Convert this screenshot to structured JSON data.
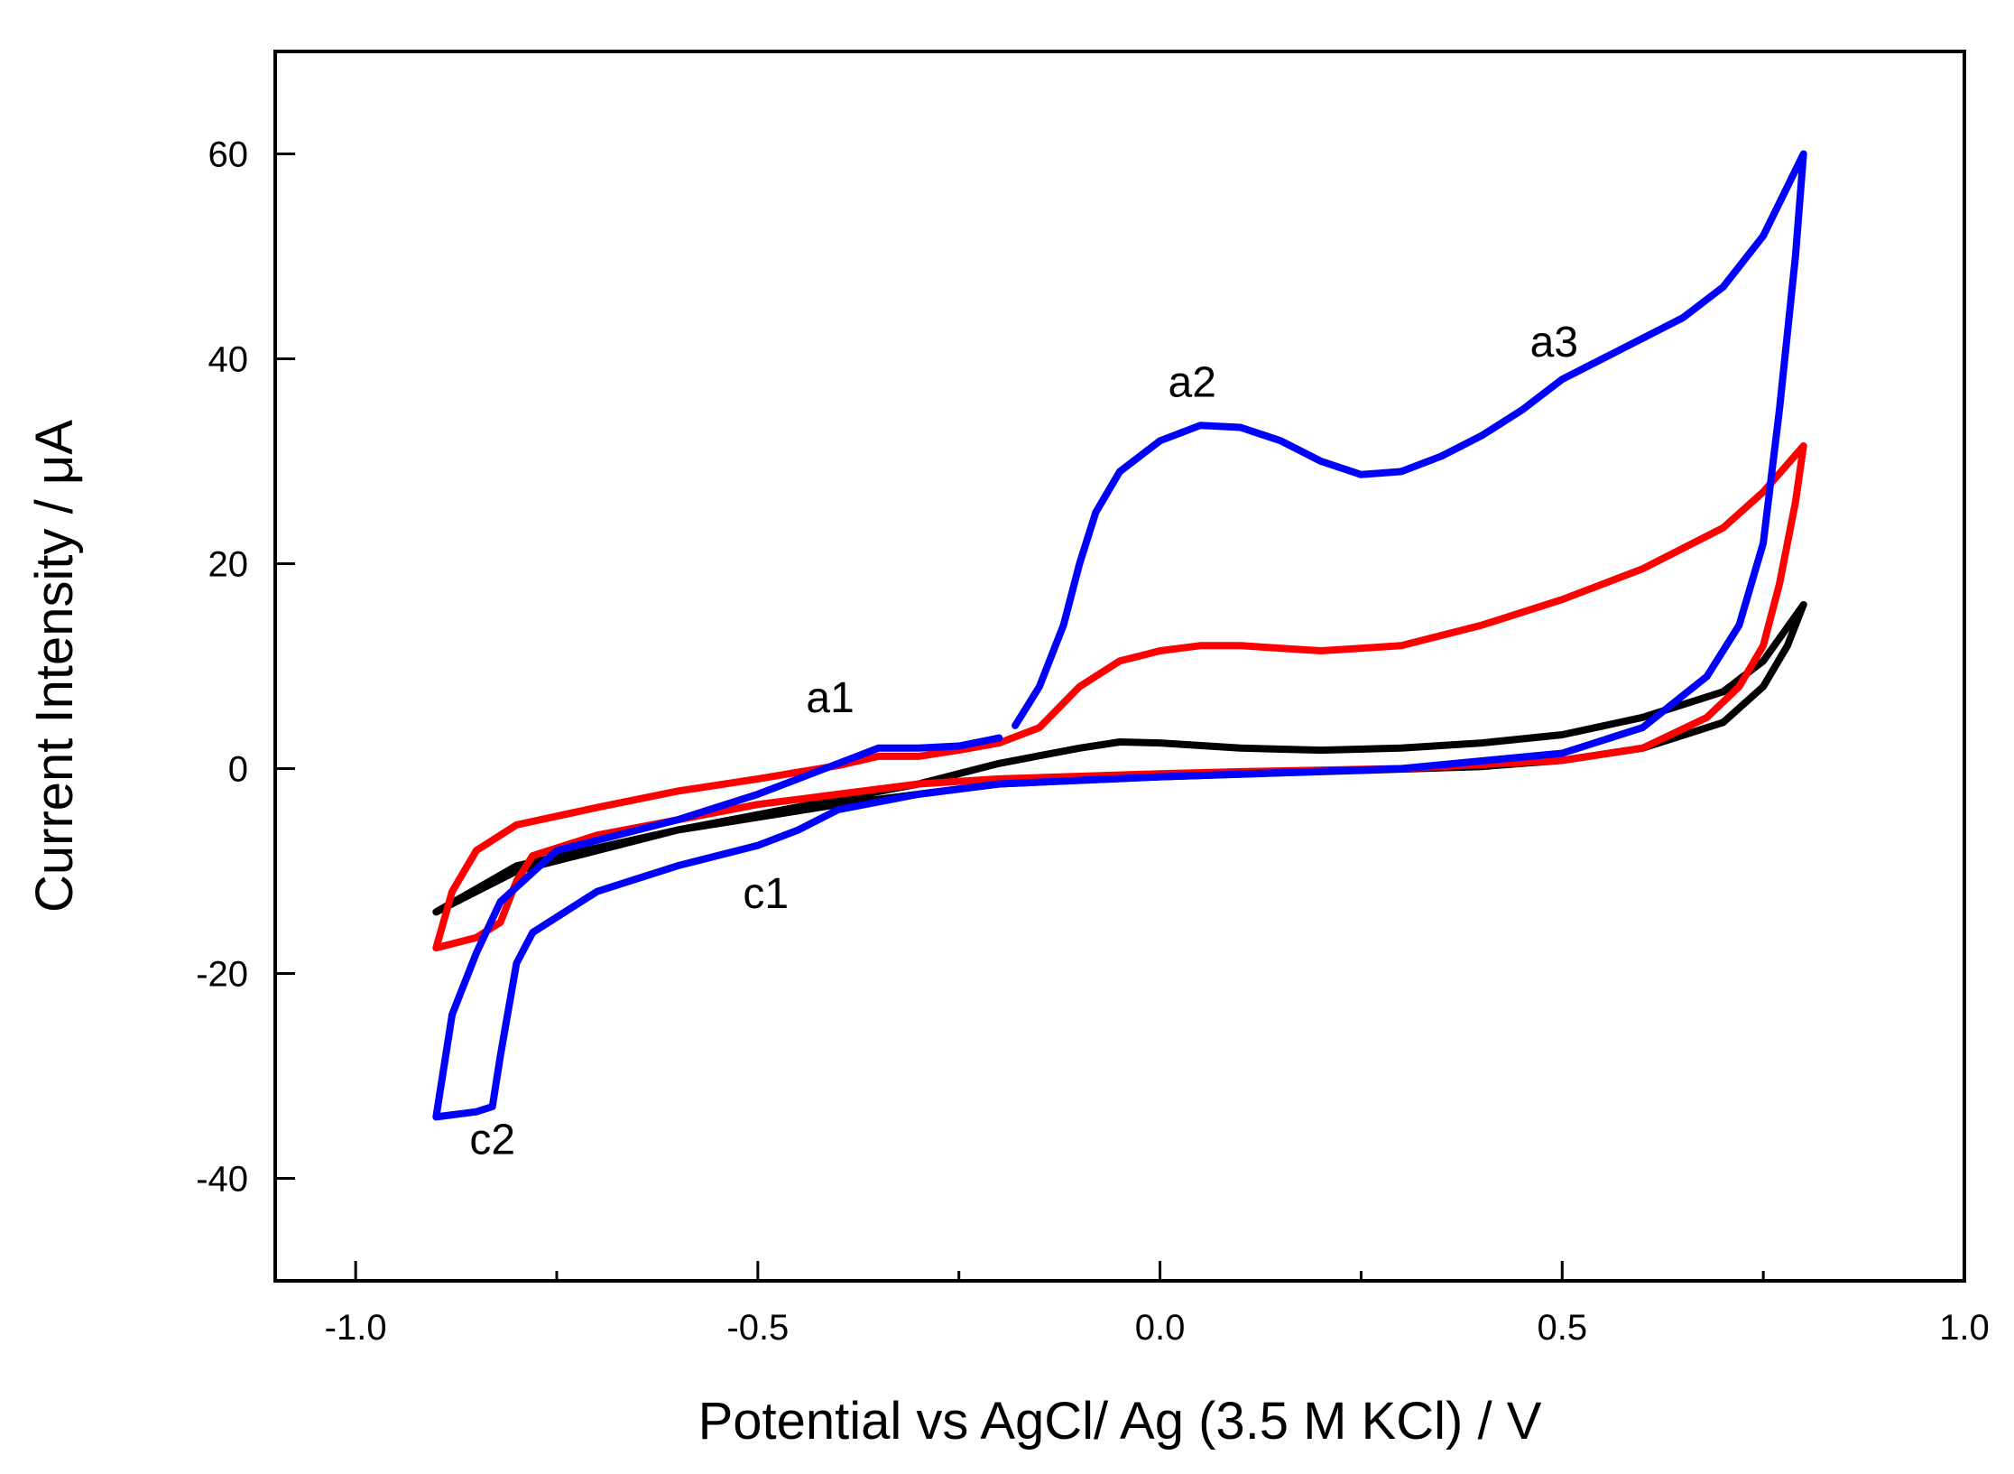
{
  "chart_data": {
    "type": "line",
    "title": "",
    "xlabel": "Potential vs AgCl/ Ag (3.5 M KCl) / V",
    "ylabel": "Current Intensity / μA",
    "xlim": [
      -1.1,
      1.0
    ],
    "ylim": [
      -50,
      70
    ],
    "xticks": [
      -1.0,
      -0.5,
      0.0,
      0.5,
      1.0
    ],
    "xtick_labels": [
      "-1.0",
      "-0.5",
      "0.0",
      "0.5",
      "1.0"
    ],
    "yticks": [
      -40,
      -20,
      0,
      20,
      40,
      60
    ],
    "ytick_labels": [
      "-40",
      "-20",
      "0",
      "20",
      "40",
      "60"
    ],
    "grid": false,
    "legend": "none",
    "series": [
      {
        "name": "black",
        "color": "#000000",
        "points": [
          [
            -0.9,
            -14
          ],
          [
            -0.8,
            -10
          ],
          [
            -0.6,
            -6
          ],
          [
            -0.4,
            -3
          ],
          [
            -0.3,
            -1.5
          ],
          [
            -0.2,
            0.5
          ],
          [
            -0.1,
            2
          ],
          [
            -0.05,
            2.6
          ],
          [
            0.0,
            2.5
          ],
          [
            0.1,
            2
          ],
          [
            0.2,
            1.8
          ],
          [
            0.3,
            2
          ],
          [
            0.4,
            2.5
          ],
          [
            0.5,
            3.3
          ],
          [
            0.6,
            5
          ],
          [
            0.7,
            7.5
          ],
          [
            0.75,
            10.5
          ],
          [
            0.8,
            16
          ],
          [
            0.78,
            12
          ],
          [
            0.75,
            8
          ],
          [
            0.7,
            4.5
          ],
          [
            0.6,
            2
          ],
          [
            0.5,
            0.8
          ],
          [
            0.4,
            0.2
          ],
          [
            0.2,
            -0.3
          ],
          [
            0.0,
            -0.8
          ],
          [
            -0.2,
            -1.5
          ],
          [
            -0.4,
            -3.5
          ],
          [
            -0.6,
            -6
          ],
          [
            -0.8,
            -9.5
          ],
          [
            -0.9,
            -14
          ]
        ]
      },
      {
        "name": "red",
        "color": "#ff0000",
        "points": [
          [
            -0.9,
            -17.5
          ],
          [
            -0.88,
            -12
          ],
          [
            -0.85,
            -8
          ],
          [
            -0.8,
            -5.5
          ],
          [
            -0.7,
            -3.8
          ],
          [
            -0.6,
            -2.2
          ],
          [
            -0.5,
            -1
          ],
          [
            -0.4,
            0.3
          ],
          [
            -0.35,
            1.2
          ],
          [
            -0.3,
            1.2
          ],
          [
            -0.25,
            1.8
          ],
          [
            -0.2,
            2.5
          ],
          [
            -0.15,
            4
          ],
          [
            -0.1,
            8
          ],
          [
            -0.05,
            10.5
          ],
          [
            0.0,
            11.5
          ],
          [
            0.05,
            12
          ],
          [
            0.1,
            12
          ],
          [
            0.2,
            11.5
          ],
          [
            0.3,
            12
          ],
          [
            0.4,
            14
          ],
          [
            0.5,
            16.5
          ],
          [
            0.6,
            19.5
          ],
          [
            0.7,
            23.5
          ],
          [
            0.75,
            27
          ],
          [
            0.8,
            31.5
          ],
          [
            0.79,
            26
          ],
          [
            0.77,
            18
          ],
          [
            0.75,
            12
          ],
          [
            0.72,
            8
          ],
          [
            0.68,
            5
          ],
          [
            0.6,
            2
          ],
          [
            0.5,
            0.8
          ],
          [
            0.3,
            0
          ],
          [
            0.1,
            -0.3
          ],
          [
            0.0,
            -0.5
          ],
          [
            -0.2,
            -1
          ],
          [
            -0.3,
            -1.5
          ],
          [
            -0.4,
            -2.5
          ],
          [
            -0.5,
            -3.5
          ],
          [
            -0.6,
            -5
          ],
          [
            -0.7,
            -6.5
          ],
          [
            -0.78,
            -8.5
          ],
          [
            -0.8,
            -11
          ],
          [
            -0.82,
            -15
          ],
          [
            -0.85,
            -16.5
          ],
          [
            -0.9,
            -17.5
          ]
        ]
      },
      {
        "name": "blue",
        "color": "#0000ff",
        "points": [
          [
            -0.18,
            4.2
          ],
          [
            -0.15,
            8
          ],
          [
            -0.12,
            14
          ],
          [
            -0.1,
            20
          ],
          [
            -0.08,
            25
          ],
          [
            -0.05,
            29
          ],
          [
            0.0,
            32
          ],
          [
            0.05,
            33.5
          ],
          [
            0.1,
            33.3
          ],
          [
            0.15,
            32
          ],
          [
            0.2,
            30
          ],
          [
            0.25,
            28.7
          ],
          [
            0.3,
            29
          ],
          [
            0.35,
            30.5
          ],
          [
            0.4,
            32.5
          ],
          [
            0.45,
            35
          ],
          [
            0.5,
            38
          ],
          [
            0.55,
            40
          ],
          [
            0.6,
            42
          ],
          [
            0.65,
            44
          ],
          [
            0.7,
            47
          ],
          [
            0.75,
            52
          ],
          [
            0.8,
            60
          ],
          [
            0.79,
            50
          ],
          [
            0.77,
            35
          ],
          [
            0.75,
            22
          ],
          [
            0.72,
            14
          ],
          [
            0.68,
            9
          ],
          [
            0.6,
            4
          ],
          [
            0.5,
            1.5
          ],
          [
            0.3,
            0
          ],
          [
            0.0,
            -0.8
          ],
          [
            -0.2,
            -1.5
          ],
          [
            -0.3,
            -2.5
          ],
          [
            -0.4,
            -4
          ],
          [
            -0.45,
            -6
          ],
          [
            -0.5,
            -7.5
          ],
          [
            -0.6,
            -9.5
          ],
          [
            -0.7,
            -12
          ],
          [
            -0.78,
            -16
          ],
          [
            -0.8,
            -19
          ],
          [
            -0.82,
            -28
          ],
          [
            -0.83,
            -33
          ],
          [
            -0.85,
            -33.5
          ],
          [
            -0.88,
            -33.8
          ],
          [
            -0.9,
            -34
          ],
          [
            -0.88,
            -24
          ],
          [
            -0.85,
            -18
          ],
          [
            -0.82,
            -13
          ],
          [
            -0.75,
            -8
          ],
          [
            -0.6,
            -5
          ],
          [
            -0.5,
            -2.5
          ],
          [
            -0.4,
            0.5
          ],
          [
            -0.35,
            2
          ],
          [
            -0.3,
            2
          ],
          [
            -0.25,
            2.2
          ],
          [
            -0.2,
            3
          ]
        ]
      }
    ],
    "annotations": [
      {
        "text": "a1",
        "x": -0.41,
        "y": 5.5
      },
      {
        "text": "a2",
        "x": 0.04,
        "y": 36.3
      },
      {
        "text": "a3",
        "x": 0.49,
        "y": 40.2
      },
      {
        "text": "c1",
        "x": -0.49,
        "y": -13.6
      },
      {
        "text": "c2",
        "x": -0.83,
        "y": -37.6
      }
    ]
  }
}
